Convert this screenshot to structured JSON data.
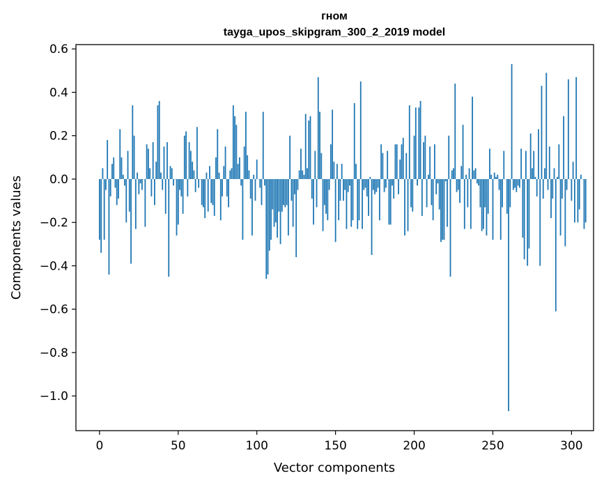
{
  "chart_data": {
    "type": "bar",
    "title": "гном",
    "subtitle": "tayga_upos_skipgram_300_2_2019 model",
    "xlabel": "Vector components",
    "ylabel": "Components values",
    "xlim": [
      -15,
      314
    ],
    "ylim": [
      -1.16,
      0.62
    ],
    "xticks": [
      0,
      50,
      100,
      150,
      200,
      250,
      300
    ],
    "xtick_labels": [
      "0",
      "50",
      "100",
      "150",
      "200",
      "250",
      "300"
    ],
    "yticks": [
      -1.0,
      -0.8,
      -0.6,
      -0.4,
      -0.2,
      0.0,
      0.2,
      0.4,
      0.6
    ],
    "ytick_labels": [
      "−1.0",
      "−0.8",
      "−0.6",
      "−0.4",
      "−0.2",
      "0.0",
      "0.2",
      "0.4",
      "0.6"
    ],
    "grid": false,
    "bar_color": "#1f77b4",
    "values": [
      -0.28,
      -0.34,
      0.05,
      -0.28,
      -0.05,
      0.18,
      -0.44,
      -0.08,
      0.07,
      0.1,
      -0.04,
      -0.12,
      -0.09,
      0.23,
      0.1,
      0.02,
      -0.03,
      -0.2,
      0.13,
      -0.15,
      -0.39,
      0.34,
      0.2,
      -0.23,
      0.03,
      -0.07,
      -0.02,
      -0.05,
      0.0,
      -0.22,
      0.16,
      0.14,
      0.05,
      -0.08,
      0.17,
      -0.12,
      0.08,
      0.34,
      0.36,
      0.03,
      -0.05,
      0.15,
      -0.16,
      0.17,
      -0.45,
      0.06,
      0.05,
      -0.03,
      0.0,
      -0.26,
      -0.21,
      -0.05,
      -0.08,
      -0.16,
      0.2,
      0.22,
      -0.08,
      0.17,
      0.13,
      0.08,
      0.04,
      -0.06,
      0.24,
      -0.04,
      0.0,
      -0.12,
      -0.13,
      -0.18,
      0.03,
      -0.15,
      0.06,
      -0.11,
      -0.12,
      -0.17,
      0.1,
      0.23,
      0.03,
      -0.19,
      -0.08,
      0.06,
      0.15,
      -0.08,
      -0.13,
      0.04,
      0.05,
      0.34,
      0.29,
      0.25,
      0.07,
      0.1,
      -0.03,
      -0.28,
      0.15,
      0.31,
      0.11,
      0.04,
      -0.09,
      -0.26,
      0.02,
      -0.1,
      0.09,
      0.0,
      -0.04,
      -0.12,
      0.31,
      -0.03,
      -0.46,
      -0.44,
      -0.33,
      -0.28,
      -0.14,
      -0.22,
      -0.2,
      -0.27,
      -0.15,
      -0.3,
      -0.15,
      -0.12,
      -0.13,
      -0.12,
      -0.26,
      0.2,
      -0.1,
      -0.22,
      -0.07,
      -0.36,
      -0.05,
      0.04,
      0.14,
      0.04,
      0.02,
      0.3,
      0.05,
      0.27,
      0.29,
      -0.09,
      -0.21,
      0.13,
      -0.13,
      0.47,
      0.31,
      0.12,
      -0.24,
      -0.12,
      -0.16,
      -0.19,
      -0.05,
      0.16,
      0.32,
      0.08,
      -0.29,
      0.07,
      -0.19,
      -0.1,
      0.07,
      -0.1,
      -0.05,
      -0.23,
      -0.06,
      -0.03,
      -0.22,
      -0.19,
      0.35,
      0.07,
      -0.23,
      -0.19,
      0.45,
      -0.23,
      -0.05,
      -0.04,
      -0.08,
      -0.17,
      0.01,
      -0.35,
      -0.05,
      -0.07,
      -0.06,
      -0.04,
      -0.19,
      0.16,
      0.12,
      -0.06,
      -0.04,
      0.13,
      -0.21,
      -0.21,
      -0.03,
      -0.09,
      0.16,
      0.16,
      -0.07,
      0.09,
      0.16,
      0.19,
      -0.26,
      0.12,
      -0.24,
      0.34,
      -0.13,
      -0.15,
      0.2,
      0.33,
      -0.03,
      0.33,
      0.36,
      -0.17,
      0.17,
      0.2,
      -0.13,
      0.02,
      0.15,
      -0.12,
      -0.19,
      0.16,
      -0.07,
      -0.02,
      -0.14,
      -0.29,
      -0.28,
      -0.28,
      -0.01,
      -0.22,
      0.2,
      -0.45,
      0.04,
      0.05,
      0.44,
      -0.06,
      -0.05,
      -0.11,
      0.06,
      0.25,
      -0.23,
      0.02,
      -0.13,
      0.05,
      -0.23,
      0.38,
      0.04,
      0.05,
      -0.02,
      -0.03,
      -0.13,
      -0.24,
      -0.23,
      -0.13,
      -0.26,
      -0.16,
      0.14,
      0.02,
      -0.28,
      0.03,
      0.01,
      0.02,
      -0.05,
      -0.28,
      -0.13,
      0.13,
      0.0,
      -0.16,
      -1.07,
      -0.13,
      0.53,
      -0.05,
      -0.04,
      -0.06,
      -0.03,
      -0.04,
      0.14,
      -0.27,
      -0.37,
      0.13,
      -0.4,
      -0.32,
      0.21,
      0.05,
      0.13,
      0.01,
      -0.08,
      0.23,
      -0.4,
      0.43,
      -0.09,
      0.05,
      0.49,
      -0.05,
      0.15,
      -0.18,
      -0.09,
      0.05,
      -0.61,
      0.01,
      0.16,
      -0.26,
      -0.09,
      0.29,
      -0.31,
      -0.05,
      0.46,
      0.0,
      -0.1,
      0.08,
      -0.2,
      0.47,
      -0.2,
      -0.14,
      0.02,
      0.0,
      -0.23,
      -0.2
    ]
  }
}
